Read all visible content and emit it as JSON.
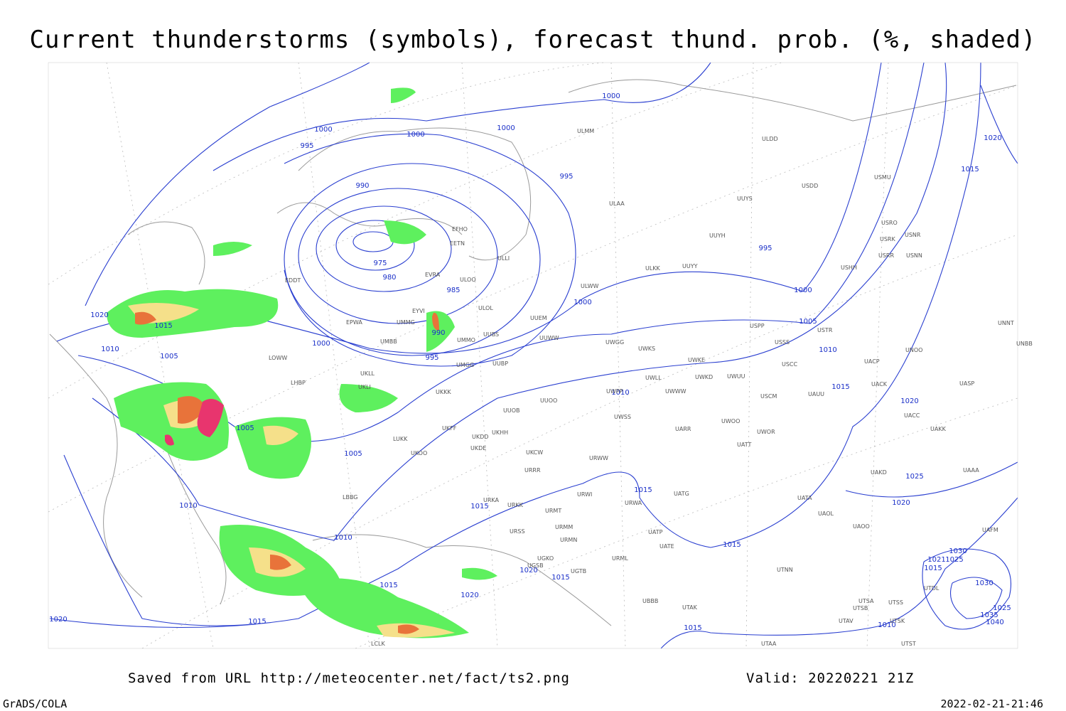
{
  "header": {
    "title": "Current thunderstorms (symbols), forecast thund. prob. (%, shaded)"
  },
  "map": {
    "isobar_labels": [
      "1000",
      "1000",
      "1000",
      "1000",
      "995",
      "995",
      "990",
      "975",
      "980",
      "985",
      "990",
      "995",
      "1000",
      "1000",
      "995",
      "1000",
      "1005",
      "1010",
      "1015",
      "1020",
      "1025",
      "1020",
      "1015",
      "1015",
      "1015",
      "1010",
      "1005",
      "1005",
      "1005",
      "1010",
      "1015",
      "1020",
      "1010",
      "1010",
      "1015",
      "1020",
      "1020",
      "1015",
      "1015",
      "1020",
      "1015",
      "1010",
      "1020",
      "1015",
      "1030",
      "1030",
      "1025",
      "1035",
      "1040",
      "1025",
      "1021",
      "1015"
    ],
    "station_labels": [
      "ULMM",
      "ULDD",
      "USDD",
      "USMU",
      "UUYS",
      "ULAA",
      "USRO",
      "USRK",
      "USNR",
      "UUYH",
      "USRR",
      "USNN",
      "ULKK",
      "UUYY",
      "USHH",
      "EFHO",
      "EETN",
      "ULLI",
      "EVRA",
      "ULOO",
      "ULWW",
      "ULOL",
      "EYVI",
      "UUEM",
      "EPWA",
      "UMMG",
      "UMBB",
      "UMMO",
      "UUBS",
      "UUWW",
      "UWGG",
      "UWKS",
      "USPP",
      "USTR",
      "USSS",
      "EDDT",
      "LOWW",
      "LHBP",
      "UKLL",
      "UKLI",
      "UMGG",
      "UUBP",
      "UWKE",
      "UWKD",
      "UWUU",
      "USCC",
      "UACP",
      "UNOO",
      "UNNT",
      "UNBB",
      "UWLL",
      "UWWW",
      "UWPP",
      "USCM",
      "UAUU",
      "UACK",
      "UASP",
      "UKKK",
      "UUOO",
      "UUOB",
      "UACC",
      "UWSS",
      "UWOO",
      "UWOR",
      "UAKK",
      "UARR",
      "LUKK",
      "UKHH",
      "UKFF",
      "UKDD",
      "UKDE",
      "UATT",
      "UKOO",
      "UKCW",
      "URWW",
      "UAKD",
      "UAAA",
      "URRR",
      "LBBG",
      "URKA",
      "URKK",
      "URWI",
      "UATG",
      "UATA",
      "URWA",
      "URMT",
      "UAOL",
      "UAOO",
      "UAFM",
      "URSS",
      "URMM",
      "URMN",
      "UATP",
      "UATE",
      "UGKO",
      "UGSB",
      "UGTB",
      "URML",
      "UTNN",
      "UBBB",
      "UTAK",
      "UTSS",
      "UTSA",
      "UTSB",
      "UTAV",
      "UTSK",
      "UTST",
      "UTAA",
      "LCLK",
      "UTDL"
    ]
  },
  "footer": {
    "saved": "Saved from URL http://meteocenter.net/fact/ts2.png",
    "valid": "Valid: 20220221 21Z",
    "credit": "GrADS/COLA",
    "timestamp": "2022-02-21-21:46"
  }
}
